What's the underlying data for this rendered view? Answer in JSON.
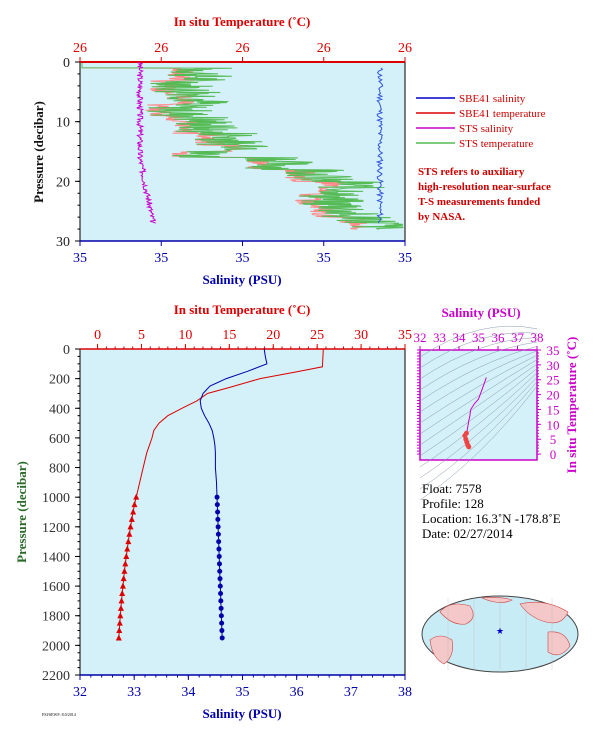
{
  "colors": {
    "temperature": "#dd0000",
    "salinity": "#0000aa",
    "sts": "#cc00cc",
    "plot_bg": "#d4f0f8",
    "axis_label_green": "#2a6b2a",
    "sts_temp_green": "#55bb55",
    "sts_temp_pink": "#ff8888"
  },
  "top_panel": {
    "top_axis_title": "In situ Temperature (˚C)",
    "top_ticks": [
      "26",
      "26",
      "26",
      "26",
      "26"
    ],
    "bottom_axis_title": "Salinity (PSU)",
    "bottom_ticks": [
      "35",
      "35",
      "35",
      "35",
      "35"
    ],
    "y_axis_title": "Pressure (decibar)",
    "y_ticks": [
      "0",
      "10",
      "20",
      "30"
    ],
    "legend": [
      {
        "label": "SBE41 salinity",
        "color": "#0000cc"
      },
      {
        "label": "SBE41 temperature",
        "color": "#dd0000"
      },
      {
        "label": "STS salinity",
        "color": "#cc00cc"
      },
      {
        "label": "STS temperature",
        "color": "#55bb55"
      }
    ],
    "note": [
      "STS refers to auxiliary",
      "high-resolution near-surface",
      "T-S measurements funded",
      "by NASA."
    ]
  },
  "main_panel": {
    "top_axis_title": "In situ Temperature (˚C)",
    "top_ticks": [
      "0",
      "5",
      "10",
      "15",
      "20",
      "25",
      "30",
      "35"
    ],
    "bottom_axis_title": "Salinity (PSU)",
    "bottom_ticks": [
      "32",
      "33",
      "34",
      "35",
      "36",
      "37",
      "38"
    ],
    "y_axis_title": "Pressure (decibar)",
    "y_ticks": [
      "0",
      "200",
      "400",
      "600",
      "800",
      "1000",
      "1200",
      "1400",
      "1600",
      "1800",
      "2000",
      "2200"
    ]
  },
  "ts_panel": {
    "top_axis_title": "Salinity (PSU)",
    "top_ticks": [
      "32",
      "33",
      "34",
      "35",
      "36",
      "37",
      "38"
    ],
    "right_axis_title": "In situ Temperature (˚C)",
    "right_ticks": [
      "0",
      "5",
      "10",
      "15",
      "20",
      "25",
      "30",
      "35"
    ]
  },
  "float_info": {
    "float": "Float: 7578",
    "profile": "Profile: 128",
    "location": "Location: 16.3˚N -178.8˚E",
    "date": "Date: 02/27/2014"
  },
  "footer": "FSI/SEWF: 8.0/2014",
  "chart_data": [
    {
      "type": "line",
      "name": "near-surface profile",
      "ylabel": "Pressure (decibar)",
      "ylim": [
        30,
        0
      ],
      "series": [
        {
          "name": "SBE41 salinity",
          "x_axis": "Salinity (PSU)",
          "pressure": [
            5,
            8,
            10,
            13,
            15,
            18,
            20,
            22,
            25,
            27
          ],
          "values": [
            35.3,
            35.3,
            35.3,
            35.3,
            35.3,
            35.3,
            35.3,
            35.3,
            35.3,
            35.3
          ]
        },
        {
          "name": "STS salinity",
          "x_axis": "Salinity (PSU)",
          "pressure": [
            0,
            2,
            5,
            8,
            10,
            12,
            15,
            18,
            20,
            22,
            25,
            27
          ],
          "values": [
            34.95,
            34.95,
            34.95,
            34.96,
            34.95,
            34.96,
            34.96,
            34.96,
            34.97,
            34.97,
            34.98,
            34.99
          ]
        },
        {
          "name": "STS temperature",
          "x_axis": "In situ Temperature (˚C)",
          "pressure": [
            1,
            3,
            5,
            7,
            10,
            12,
            15,
            17,
            20,
            22,
            25,
            27
          ],
          "values": [
            26.0,
            26.1,
            26.1,
            26.1,
            26.1,
            26.2,
            26.2,
            26.3,
            26.4,
            26.4,
            26.5,
            26.5
          ]
        }
      ]
    },
    {
      "type": "line",
      "name": "full-depth profile",
      "ylabel": "Pressure (decibar)",
      "ylim": [
        2200,
        0
      ],
      "series": [
        {
          "name": "Temperature",
          "x_axis": "In situ Temperature (˚C)",
          "xlim": [
            0,
            35
          ],
          "pressure": [
            0,
            120,
            150,
            200,
            260,
            300,
            350,
            400,
            450,
            500,
            550,
            600,
            650,
            700,
            800,
            900,
            1000,
            1050,
            1100,
            1150,
            1200,
            1250,
            1300,
            1350,
            1400,
            1450,
            1500,
            1550,
            1600,
            1650,
            1700,
            1750,
            1800,
            1850,
            1900,
            1950
          ],
          "values": [
            25.7,
            25.6,
            23.0,
            18.5,
            15.0,
            12.5,
            11.3,
            9.6,
            8.0,
            7.0,
            6.4,
            6.2,
            5.9,
            5.6,
            5.2,
            4.8,
            4.4,
            4.2,
            4.05,
            3.9,
            3.75,
            3.62,
            3.5,
            3.38,
            3.27,
            3.16,
            3.06,
            2.97,
            2.89,
            2.8,
            2.73,
            2.66,
            2.59,
            2.53,
            2.47,
            2.42
          ]
        },
        {
          "name": "Salinity",
          "x_axis": "Salinity (PSU)",
          "xlim": [
            32,
            38
          ],
          "pressure": [
            0,
            50,
            100,
            150,
            200,
            250,
            300,
            350,
            400,
            450,
            500,
            550,
            600,
            650,
            700,
            800,
            900,
            1000,
            1050,
            1100,
            1150,
            1200,
            1250,
            1300,
            1350,
            1400,
            1450,
            1500,
            1550,
            1600,
            1650,
            1700,
            1750,
            1800,
            1850,
            1900,
            1950
          ],
          "values": [
            35.4,
            35.42,
            35.45,
            35.1,
            34.7,
            34.4,
            34.27,
            34.22,
            34.24,
            34.3,
            34.38,
            34.44,
            34.47,
            34.49,
            34.5,
            34.5,
            34.52,
            34.53,
            34.535,
            34.54,
            34.545,
            34.55,
            34.555,
            34.56,
            34.565,
            34.57,
            34.575,
            34.58,
            34.585,
            34.59,
            34.595,
            34.6,
            34.605,
            34.61,
            34.615,
            34.62,
            34.625
          ]
        }
      ]
    },
    {
      "type": "scatter",
      "name": "T-S diagram",
      "xlabel": "Salinity (PSU)",
      "xlim": [
        32,
        38
      ],
      "ylabel": "In situ Temperature (˚C)",
      "ylim": [
        0,
        35
      ],
      "x": [
        34.5,
        34.45,
        34.4,
        34.35,
        34.3,
        34.38,
        34.42,
        34.46,
        34.5,
        34.55,
        34.6,
        34.8,
        35.0,
        35.2,
        35.4
      ],
      "y": [
        2.4,
        3.0,
        4.0,
        5.0,
        6.2,
        7.0,
        8.0,
        9.6,
        11.3,
        12.5,
        15.0,
        17.0,
        18.5,
        22.0,
        25.7
      ]
    }
  ]
}
